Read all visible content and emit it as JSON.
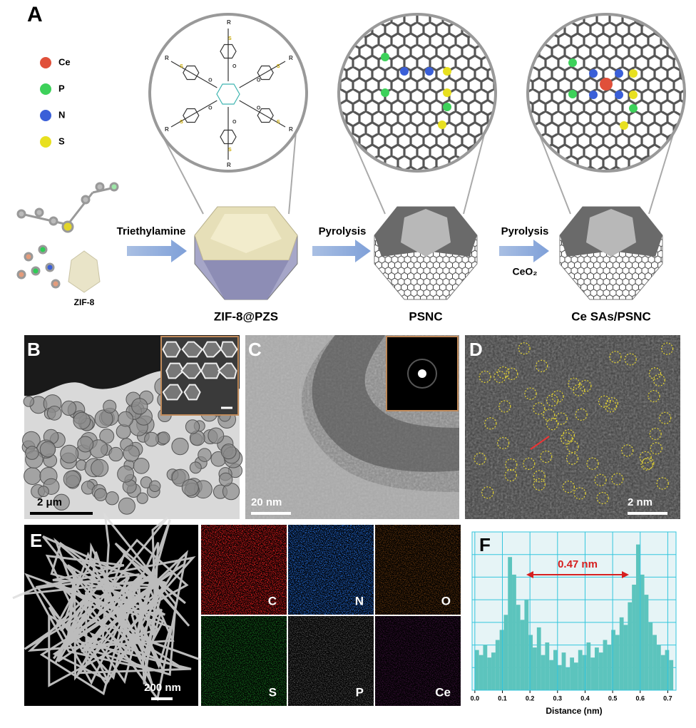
{
  "panel_a": {
    "label": "A",
    "legend": [
      "Ce",
      "P",
      "N",
      "S"
    ],
    "molecule_labels": [
      "R",
      "S",
      "O"
    ],
    "zif8": "ZIF-8",
    "step1": "Triethylamine",
    "step2": "Pyrolysis",
    "step3": "Pyrolysis",
    "step3_reagent": "CeO₂",
    "products": [
      "ZIF-8@PZS",
      "PSNC",
      "Ce SAs/PSNC"
    ]
  },
  "panel_b": {
    "label": "B",
    "scale": "2 μm"
  },
  "panel_c": {
    "label": "C",
    "scale": "20 nm"
  },
  "panel_d": {
    "label": "D",
    "scale": "2 nm"
  },
  "panel_e": {
    "label": "E",
    "scale": "200 nm",
    "maps": [
      "C",
      "N",
      "O",
      "S",
      "P",
      "Ce"
    ]
  },
  "chart_data": {
    "type": "histogram",
    "label": "F",
    "annotation": "0.47 nm",
    "x_label": "Distance (nm)",
    "color": "#5cc4bd",
    "bins": [
      0,
      0.015,
      0.03,
      0.045,
      0.06,
      0.075,
      0.09,
      0.105,
      0.12,
      0.135,
      0.15,
      0.165,
      0.18,
      0.195,
      0.21,
      0.225,
      0.24,
      0.255,
      0.27,
      0.285,
      0.3,
      0.315,
      0.33,
      0.345,
      0.36,
      0.375,
      0.39,
      0.405,
      0.42,
      0.435,
      0.45,
      0.465,
      0.48,
      0.495,
      0.51,
      0.525,
      0.54,
      0.555,
      0.57,
      0.585,
      0.6,
      0.615,
      0.63,
      0.645,
      0.66,
      0.675,
      0.69,
      0.705,
      0.72
    ],
    "values": [
      1.6,
      1.4,
      1.8,
      1.3,
      1.5,
      2.0,
      2.4,
      3.0,
      5.3,
      4.6,
      3.4,
      2.8,
      3.6,
      2.2,
      1.7,
      2.5,
      1.4,
      1.9,
      1.2,
      1.6,
      1.0,
      1.5,
      0.9,
      1.3,
      1.1,
      1.6,
      1.4,
      1.9,
      1.3,
      1.7,
      1.5,
      2.0,
      1.8,
      2.4,
      2.2,
      2.9,
      2.6,
      3.5,
      4.2,
      5.8,
      4.6,
      3.8,
      2.7,
      2.2,
      1.8,
      1.4,
      1.6,
      1.2
    ],
    "xlim": [
      -0.01,
      0.73
    ],
    "ylim": [
      0,
      6.3
    ],
    "xticks": [
      {
        "value": 0,
        "label": "0.0"
      },
      0.1,
      0.2,
      0.3,
      0.4,
      0.5,
      0.6,
      0.7
    ],
    "grid": true
  }
}
